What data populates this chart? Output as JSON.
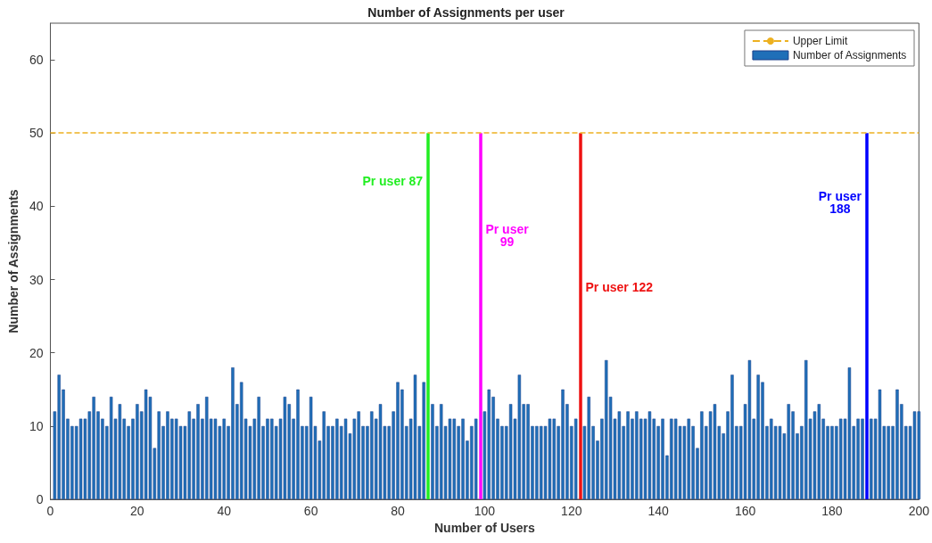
{
  "chart_data": {
    "type": "bar",
    "title": "Number of Assignments per user",
    "xlabel": "Number of Users",
    "ylabel": "Number of Assignments",
    "x": [
      1,
      2,
      3,
      4,
      5,
      6,
      7,
      8,
      9,
      10,
      11,
      12,
      13,
      14,
      15,
      16,
      17,
      18,
      19,
      20,
      21,
      22,
      23,
      24,
      25,
      26,
      27,
      28,
      29,
      30,
      31,
      32,
      33,
      34,
      35,
      36,
      37,
      38,
      39,
      40,
      41,
      42,
      43,
      44,
      45,
      46,
      47,
      48,
      49,
      50,
      51,
      52,
      53,
      54,
      55,
      56,
      57,
      58,
      59,
      60,
      61,
      62,
      63,
      64,
      65,
      66,
      67,
      68,
      69,
      70,
      71,
      72,
      73,
      74,
      75,
      76,
      77,
      78,
      79,
      80,
      81,
      82,
      83,
      84,
      85,
      86,
      87,
      88,
      89,
      90,
      91,
      92,
      93,
      94,
      95,
      96,
      97,
      98,
      99,
      100,
      101,
      102,
      103,
      104,
      105,
      106,
      107,
      108,
      109,
      110,
      111,
      112,
      113,
      114,
      115,
      116,
      117,
      118,
      119,
      120,
      121,
      122,
      123,
      124,
      125,
      126,
      127,
      128,
      129,
      130,
      131,
      132,
      133,
      134,
      135,
      136,
      137,
      138,
      139,
      140,
      141,
      142,
      143,
      144,
      145,
      146,
      147,
      148,
      149,
      150,
      151,
      152,
      153,
      154,
      155,
      156,
      157,
      158,
      159,
      160,
      161,
      162,
      163,
      164,
      165,
      166,
      167,
      168,
      169,
      170,
      171,
      172,
      173,
      174,
      175,
      176,
      177,
      178,
      179,
      180,
      181,
      182,
      183,
      184,
      185,
      186,
      187,
      188,
      189,
      190,
      191,
      192,
      193,
      194,
      195,
      196,
      197,
      198,
      199,
      200
    ],
    "series": [
      {
        "name": "Number of Assignments",
        "color": "#1f6fb8",
        "values": [
          12,
          17,
          15,
          11,
          10,
          10,
          11,
          11,
          12,
          14,
          12,
          11,
          10,
          14,
          11,
          13,
          11,
          10,
          11,
          13,
          12,
          15,
          14,
          7,
          12,
          10,
          12,
          11,
          11,
          10,
          10,
          12,
          11,
          13,
          11,
          14,
          11,
          11,
          10,
          11,
          10,
          18,
          13,
          16,
          11,
          10,
          11,
          14,
          10,
          11,
          11,
          10,
          11,
          14,
          13,
          11,
          15,
          10,
          10,
          14,
          10,
          8,
          12,
          10,
          10,
          11,
          10,
          11,
          9,
          11,
          12,
          10,
          10,
          12,
          11,
          13,
          10,
          10,
          12,
          16,
          15,
          10,
          11,
          17,
          10,
          16,
          null,
          13,
          10,
          13,
          10,
          11,
          11,
          10,
          11,
          8,
          10,
          11,
          null,
          12,
          15,
          14,
          11,
          10,
          10,
          13,
          11,
          17,
          13,
          13,
          10,
          10,
          10,
          10,
          11,
          11,
          10,
          15,
          13,
          10,
          11,
          null,
          10,
          14,
          10,
          8,
          11,
          19,
          14,
          11,
          12,
          10,
          12,
          11,
          12,
          11,
          11,
          12,
          11,
          10,
          11,
          6,
          11,
          11,
          10,
          10,
          11,
          10,
          7,
          12,
          10,
          12,
          13,
          10,
          9,
          12,
          17,
          10,
          10,
          13,
          19,
          11,
          17,
          16,
          10,
          11,
          10,
          10,
          9,
          13,
          12,
          9,
          10,
          19,
          11,
          12,
          13,
          11,
          10,
          10,
          10,
          11,
          11,
          18,
          10,
          11,
          11,
          null,
          11,
          11,
          15,
          10,
          10,
          10,
          15,
          13,
          10,
          10,
          12,
          12
        ]
      }
    ],
    "xlim": [
      0,
      200
    ],
    "xticks": [
      0,
      20,
      40,
      60,
      80,
      100,
      120,
      140,
      160,
      180,
      200
    ],
    "ylim": [
      0,
      65
    ],
    "yticks": [
      0,
      10,
      20,
      30,
      40,
      50,
      60
    ],
    "ref_lines": [
      {
        "axis": "y",
        "value": 50,
        "label": "Upper Limit",
        "color": "#edb120",
        "line_style": "dashed"
      },
      {
        "axis": "x",
        "value": 87,
        "label": "Pr user 87",
        "color": "#22ee22"
      },
      {
        "axis": "x",
        "value": 99,
        "label": "Pr user\n99",
        "color": "#ff00ff"
      },
      {
        "axis": "x",
        "value": 122,
        "label": "Pr user 122",
        "color": "#ee1111"
      },
      {
        "axis": "x",
        "value": 188,
        "label": "Pr user\n188",
        "color": "#0000ff"
      }
    ],
    "legend": "top right",
    "grid": false
  }
}
